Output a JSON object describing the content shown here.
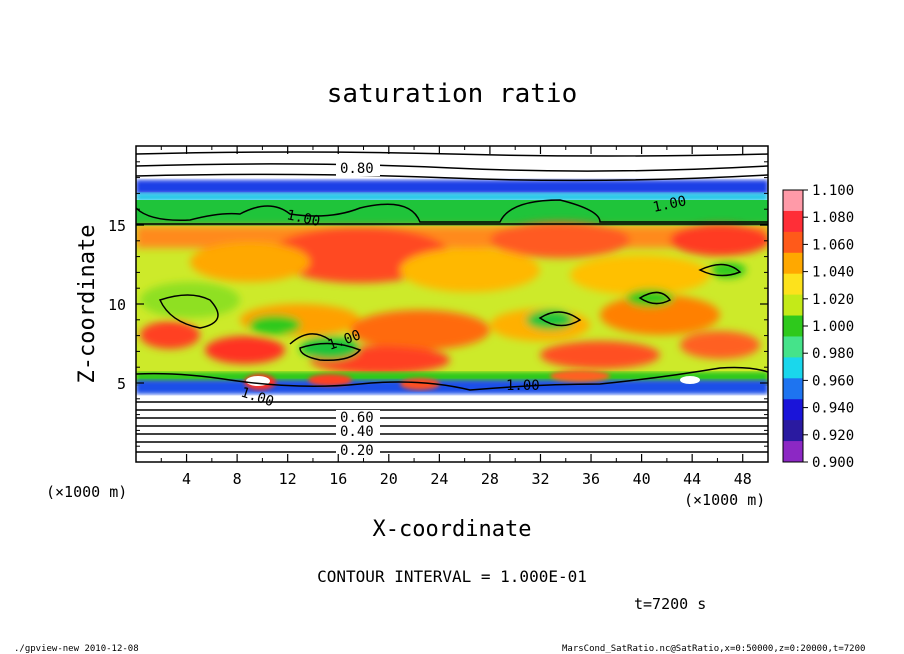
{
  "chart_data": {
    "type": "heatmap",
    "title": "saturation ratio",
    "xlabel": "X-coordinate",
    "ylabel": "Z-coordinate",
    "x_unit": "(×1000 m)",
    "z_unit": "(×1000 m)",
    "xlim": [
      0,
      50
    ],
    "ylim": [
      0,
      20
    ],
    "x_ticks": [
      "4",
      "8",
      "12",
      "16",
      "20",
      "24",
      "28",
      "32",
      "36",
      "40",
      "44",
      "48"
    ],
    "y_ticks": [
      "5",
      "10",
      "15"
    ],
    "grid": false,
    "contour_interval_text": "CONTOUR INTERVAL = 1.000E-01",
    "time_text": "t=7200 s",
    "contour_labels": [
      "0.80",
      "1.00",
      "1.00",
      "1.00",
      "1.00",
      "1.00",
      "0.60",
      "0.40",
      "0.20"
    ],
    "colorbar": {
      "min": 0.9,
      "max": 1.1,
      "placement": "right",
      "tick_labels": [
        "1.100",
        "1.080",
        "1.060",
        "1.040",
        "1.020",
        "1.000",
        "0.980",
        "0.960",
        "0.940",
        "0.920",
        "0.900"
      ],
      "colors": [
        "#ff9aa8",
        "#ff2e37",
        "#ff5a1a",
        "#ffa800",
        "#fde21c",
        "#c4ea18",
        "#2ec91c",
        "#45e38a",
        "#1ad7ec",
        "#1e74f0",
        "#1a14d9",
        "#2a1aa0",
        "#8c28c4"
      ]
    }
  },
  "footer": {
    "left": "./gpview-new   2010-12-08",
    "right": "MarsCond_SatRatio.nc@SatRatio,x=0:50000,z=0:20000,t=7200"
  }
}
